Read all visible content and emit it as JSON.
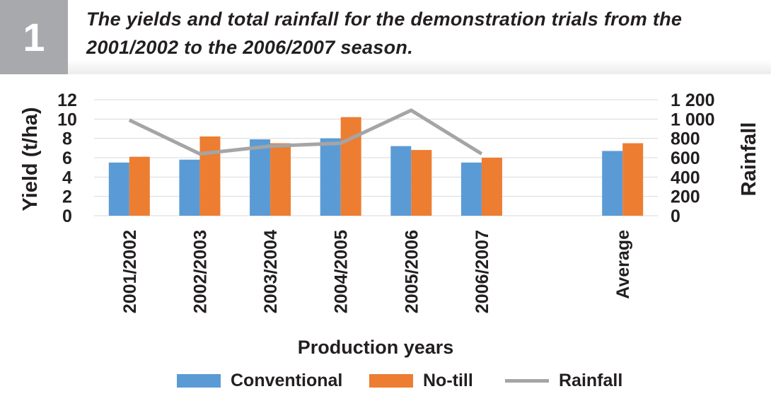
{
  "figure": {
    "number": "1",
    "title": "The yields and total rainfall for the demonstration trials from the 2001/2002 to the 2006/2007 season."
  },
  "chart_data": {
    "type": "bar",
    "categories": [
      "2001/2002",
      "2002/2003",
      "2003/2004",
      "2004/2005",
      "2005/2006",
      "2006/2007",
      "",
      "Average"
    ],
    "series": [
      {
        "name": "Conventional",
        "kind": "bar",
        "axis": "left",
        "color": "#5b9bd5",
        "values": [
          5.5,
          5.8,
          7.9,
          8.0,
          7.2,
          5.5,
          null,
          6.7
        ]
      },
      {
        "name": "No-till",
        "kind": "bar",
        "axis": "left",
        "color": "#ed7d31",
        "values": [
          6.1,
          8.2,
          7.5,
          10.2,
          6.8,
          6.0,
          null,
          7.5
        ]
      },
      {
        "name": "Rainfall",
        "kind": "line",
        "axis": "right",
        "color": "#a5a5a5",
        "values": [
          990,
          640,
          720,
          750,
          1090,
          640,
          null,
          null
        ]
      }
    ],
    "xlabel": "Production years",
    "ylabel": "Yield (t/ha)",
    "y2label": "Rainfall",
    "ylim": [
      0,
      12
    ],
    "y2lim": [
      0,
      1200
    ],
    "yticks": [
      "0",
      "2",
      "4",
      "6",
      "8",
      "10",
      "12"
    ],
    "y2ticks": [
      "0",
      "200",
      "400",
      "600",
      "800",
      "1 000",
      "1 200"
    ],
    "grid": true,
    "legend_position": "bottom"
  }
}
